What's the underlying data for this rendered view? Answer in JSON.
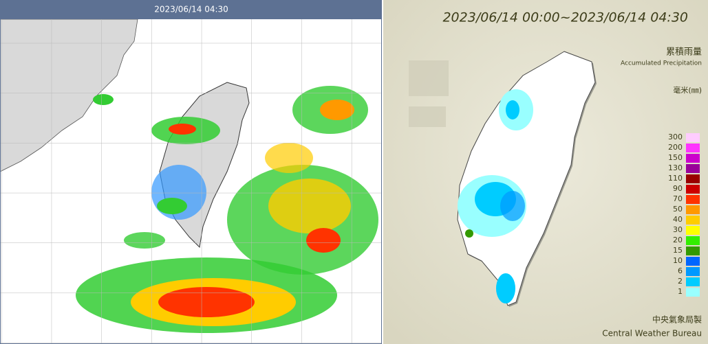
{
  "radar": {
    "timestamp": "2023/06/14 04:30"
  },
  "rainfall": {
    "period": "2023/06/14 00:00~2023/06/14 04:30",
    "title_zh": "累積雨量",
    "title_en": "Accumulated Precipitation",
    "unit": "毫米(㎜)",
    "legend": [
      {
        "value": 300,
        "color": "#ffccff"
      },
      {
        "value": 200,
        "color": "#ff33ff"
      },
      {
        "value": 150,
        "color": "#cc00cc"
      },
      {
        "value": 130,
        "color": "#990099"
      },
      {
        "value": 110,
        "color": "#990000"
      },
      {
        "value": 90,
        "color": "#cc0000"
      },
      {
        "value": 70,
        "color": "#ff3300"
      },
      {
        "value": 50,
        "color": "#ff9900"
      },
      {
        "value": 40,
        "color": "#ffcc00"
      },
      {
        "value": 30,
        "color": "#ffff00"
      },
      {
        "value": 20,
        "color": "#33ee00"
      },
      {
        "value": 15,
        "color": "#339900"
      },
      {
        "value": 10,
        "color": "#0066ff"
      },
      {
        "value": 6,
        "color": "#0099ff"
      },
      {
        "value": 2,
        "color": "#00ccff"
      },
      {
        "value": 1,
        "color": "#99ffff"
      }
    ],
    "credit_zh": "中央氣象局製",
    "credit_en": "Central Weather Bureau"
  }
}
